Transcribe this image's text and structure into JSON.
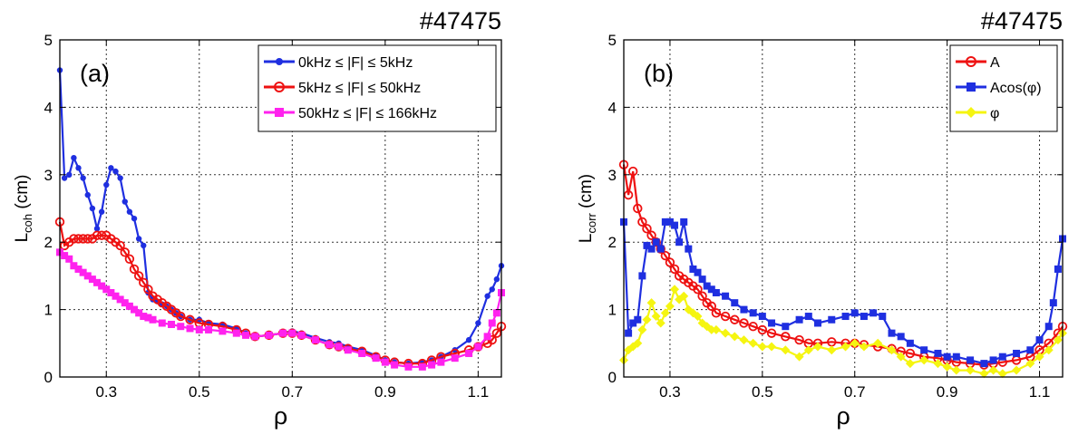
{
  "chart_data": [
    {
      "type": "line",
      "shot": "#47475",
      "panel_label": "(a)",
      "xlabel": "ρ",
      "ylabel_main": "L",
      "ylabel_sub": "coh",
      "ylabel_unit": " (cm)",
      "xlim": [
        0.2,
        1.15
      ],
      "ylim": [
        0,
        5
      ],
      "xticks": [
        "0.3",
        "0.5",
        "0.7",
        "0.9",
        "1.1"
      ],
      "yticks": [
        "0",
        "1",
        "2",
        "3",
        "4",
        "5"
      ],
      "grid": true,
      "legend_position": "top-right",
      "series": [
        {
          "name": "0kHz ≤ |F| ≤ 5kHz",
          "color": "#1f2fe0",
          "marker": "dot",
          "x": [
            0.2,
            0.21,
            0.22,
            0.23,
            0.24,
            0.25,
            0.26,
            0.27,
            0.28,
            0.29,
            0.3,
            0.31,
            0.32,
            0.33,
            0.34,
            0.35,
            0.36,
            0.37,
            0.38,
            0.39,
            0.4,
            0.41,
            0.42,
            0.43,
            0.44,
            0.45,
            0.46,
            0.48,
            0.5,
            0.52,
            0.55,
            0.58,
            0.6,
            0.62,
            0.65,
            0.68,
            0.7,
            0.72,
            0.75,
            0.78,
            0.8,
            0.82,
            0.85,
            0.88,
            0.9,
            0.92,
            0.95,
            0.98,
            1.0,
            1.02,
            1.05,
            1.08,
            1.1,
            1.12,
            1.13,
            1.14,
            1.15
          ],
          "y": [
            4.55,
            2.95,
            3.0,
            3.25,
            3.1,
            2.95,
            2.7,
            2.5,
            2.2,
            2.45,
            2.85,
            3.1,
            3.05,
            2.95,
            2.6,
            2.45,
            2.35,
            2.05,
            1.95,
            1.25,
            1.15,
            1.12,
            1.08,
            1.05,
            1.0,
            0.95,
            0.9,
            0.85,
            0.85,
            0.8,
            0.78,
            0.72,
            0.65,
            0.6,
            0.62,
            0.65,
            0.68,
            0.65,
            0.58,
            0.52,
            0.5,
            0.45,
            0.4,
            0.32,
            0.25,
            0.22,
            0.2,
            0.22,
            0.25,
            0.3,
            0.4,
            0.55,
            0.8,
            1.2,
            1.3,
            1.45,
            1.65
          ]
        },
        {
          "name": "5kHz ≤ |F| ≤ 50kHz",
          "color": "#ee1111",
          "marker": "circle",
          "x": [
            0.2,
            0.21,
            0.22,
            0.23,
            0.24,
            0.25,
            0.26,
            0.27,
            0.28,
            0.29,
            0.3,
            0.31,
            0.32,
            0.33,
            0.34,
            0.35,
            0.36,
            0.37,
            0.38,
            0.39,
            0.4,
            0.41,
            0.42,
            0.43,
            0.44,
            0.45,
            0.46,
            0.48,
            0.5,
            0.52,
            0.55,
            0.58,
            0.6,
            0.62,
            0.65,
            0.68,
            0.7,
            0.72,
            0.75,
            0.78,
            0.8,
            0.82,
            0.85,
            0.88,
            0.9,
            0.92,
            0.95,
            0.98,
            1.0,
            1.02,
            1.05,
            1.08,
            1.1,
            1.12,
            1.13,
            1.14,
            1.15
          ],
          "y": [
            2.3,
            1.95,
            2.0,
            2.05,
            2.05,
            2.05,
            2.05,
            2.05,
            2.1,
            2.1,
            2.1,
            2.05,
            2.0,
            1.95,
            1.85,
            1.75,
            1.6,
            1.5,
            1.4,
            1.3,
            1.2,
            1.15,
            1.1,
            1.05,
            1.0,
            0.95,
            0.9,
            0.85,
            0.8,
            0.78,
            0.75,
            0.7,
            0.65,
            0.6,
            0.62,
            0.65,
            0.65,
            0.62,
            0.55,
            0.48,
            0.45,
            0.42,
            0.38,
            0.3,
            0.25,
            0.22,
            0.2,
            0.2,
            0.25,
            0.3,
            0.35,
            0.4,
            0.45,
            0.5,
            0.55,
            0.65,
            0.75
          ]
        },
        {
          "name": "50kHz ≤ |F| ≤ 166kHz",
          "color": "#ff22ee",
          "marker": "square",
          "x": [
            0.2,
            0.21,
            0.22,
            0.23,
            0.24,
            0.25,
            0.26,
            0.27,
            0.28,
            0.29,
            0.3,
            0.31,
            0.32,
            0.33,
            0.34,
            0.35,
            0.36,
            0.37,
            0.38,
            0.39,
            0.4,
            0.42,
            0.44,
            0.46,
            0.48,
            0.5,
            0.52,
            0.55,
            0.58,
            0.6,
            0.62,
            0.65,
            0.68,
            0.7,
            0.72,
            0.75,
            0.78,
            0.8,
            0.82,
            0.85,
            0.88,
            0.9,
            0.92,
            0.95,
            0.98,
            1.0,
            1.02,
            1.05,
            1.08,
            1.1,
            1.12,
            1.13,
            1.14,
            1.15
          ],
          "y": [
            1.85,
            1.8,
            1.75,
            1.65,
            1.6,
            1.55,
            1.5,
            1.45,
            1.4,
            1.35,
            1.3,
            1.25,
            1.2,
            1.15,
            1.1,
            1.05,
            1.0,
            0.95,
            0.9,
            0.88,
            0.85,
            0.8,
            0.78,
            0.75,
            0.72,
            0.7,
            0.7,
            0.68,
            0.65,
            0.62,
            0.6,
            0.62,
            0.65,
            0.65,
            0.62,
            0.55,
            0.48,
            0.45,
            0.4,
            0.35,
            0.28,
            0.22,
            0.18,
            0.15,
            0.15,
            0.18,
            0.22,
            0.28,
            0.35,
            0.45,
            0.6,
            0.8,
            0.95,
            1.25
          ]
        }
      ]
    },
    {
      "type": "line",
      "shot": "#47475",
      "panel_label": "(b)",
      "xlabel": "ρ",
      "ylabel_main": "L",
      "ylabel_sub": "corr",
      "ylabel_unit": " (cm)",
      "xlim": [
        0.2,
        1.15
      ],
      "ylim": [
        0,
        5
      ],
      "xticks": [
        "0.3",
        "0.5",
        "0.7",
        "0.9",
        "1.1"
      ],
      "yticks": [
        "0",
        "1",
        "2",
        "3",
        "4",
        "5"
      ],
      "grid": true,
      "legend_position": "top-right",
      "series": [
        {
          "name": "A",
          "color": "#ee1111",
          "marker": "circle",
          "x": [
            0.2,
            0.21,
            0.22,
            0.23,
            0.24,
            0.25,
            0.26,
            0.27,
            0.28,
            0.29,
            0.3,
            0.31,
            0.32,
            0.33,
            0.34,
            0.35,
            0.36,
            0.37,
            0.38,
            0.39,
            0.4,
            0.42,
            0.44,
            0.46,
            0.48,
            0.5,
            0.52,
            0.55,
            0.58,
            0.6,
            0.62,
            0.65,
            0.68,
            0.7,
            0.72,
            0.75,
            0.78,
            0.8,
            0.82,
            0.85,
            0.88,
            0.9,
            0.92,
            0.95,
            0.98,
            1.0,
            1.02,
            1.05,
            1.08,
            1.1,
            1.12,
            1.14,
            1.15
          ],
          "y": [
            3.15,
            2.7,
            3.05,
            2.5,
            2.3,
            2.2,
            2.1,
            2.0,
            1.9,
            1.8,
            1.7,
            1.6,
            1.5,
            1.45,
            1.4,
            1.35,
            1.3,
            1.2,
            1.1,
            1.05,
            0.95,
            0.9,
            0.85,
            0.8,
            0.75,
            0.7,
            0.65,
            0.6,
            0.55,
            0.5,
            0.5,
            0.52,
            0.5,
            0.5,
            0.48,
            0.45,
            0.42,
            0.38,
            0.35,
            0.3,
            0.28,
            0.25,
            0.22,
            0.2,
            0.18,
            0.2,
            0.22,
            0.25,
            0.3,
            0.4,
            0.5,
            0.65,
            0.75
          ]
        },
        {
          "name": "Acos(φ)",
          "color": "#1f2fe0",
          "marker": "square",
          "x": [
            0.2,
            0.21,
            0.22,
            0.23,
            0.24,
            0.25,
            0.26,
            0.27,
            0.28,
            0.29,
            0.3,
            0.31,
            0.32,
            0.33,
            0.34,
            0.35,
            0.36,
            0.37,
            0.38,
            0.39,
            0.4,
            0.42,
            0.44,
            0.46,
            0.48,
            0.5,
            0.52,
            0.55,
            0.58,
            0.6,
            0.62,
            0.65,
            0.68,
            0.7,
            0.72,
            0.74,
            0.76,
            0.78,
            0.8,
            0.82,
            0.85,
            0.88,
            0.9,
            0.92,
            0.95,
            0.98,
            1.0,
            1.02,
            1.05,
            1.08,
            1.1,
            1.12,
            1.13,
            1.14,
            1.15
          ],
          "y": [
            2.3,
            0.65,
            0.8,
            0.85,
            1.5,
            1.95,
            1.9,
            2.0,
            1.9,
            2.3,
            2.3,
            2.25,
            2.0,
            2.3,
            1.9,
            1.6,
            1.55,
            1.45,
            1.35,
            1.3,
            1.25,
            1.2,
            1.1,
            1.0,
            0.95,
            0.9,
            0.8,
            0.75,
            0.85,
            0.9,
            0.8,
            0.85,
            0.9,
            0.95,
            0.9,
            0.95,
            0.9,
            0.65,
            0.6,
            0.5,
            0.4,
            0.35,
            0.3,
            0.3,
            0.25,
            0.2,
            0.25,
            0.3,
            0.35,
            0.4,
            0.55,
            0.75,
            1.1,
            1.6,
            2.05
          ]
        },
        {
          "name": "φ",
          "color": "#f5f511",
          "marker": "diamond",
          "x": [
            0.2,
            0.21,
            0.22,
            0.23,
            0.24,
            0.25,
            0.26,
            0.27,
            0.28,
            0.29,
            0.3,
            0.31,
            0.32,
            0.33,
            0.34,
            0.35,
            0.36,
            0.37,
            0.38,
            0.39,
            0.4,
            0.42,
            0.44,
            0.46,
            0.48,
            0.5,
            0.52,
            0.55,
            0.58,
            0.6,
            0.62,
            0.65,
            0.68,
            0.7,
            0.72,
            0.75,
            0.78,
            0.8,
            0.82,
            0.85,
            0.88,
            0.9,
            0.92,
            0.95,
            0.98,
            1.0,
            1.02,
            1.05,
            1.08,
            1.1,
            1.12,
            1.14,
            1.15
          ],
          "y": [
            0.25,
            0.4,
            0.45,
            0.5,
            0.7,
            0.85,
            1.1,
            0.9,
            0.8,
            0.95,
            1.05,
            1.3,
            1.15,
            1.2,
            1.0,
            0.95,
            0.9,
            0.8,
            0.75,
            0.7,
            0.7,
            0.65,
            0.6,
            0.55,
            0.5,
            0.45,
            0.45,
            0.4,
            0.3,
            0.4,
            0.45,
            0.4,
            0.45,
            0.5,
            0.45,
            0.5,
            0.4,
            0.3,
            0.2,
            0.25,
            0.2,
            0.15,
            0.1,
            0.1,
            0.05,
            0.1,
            0.05,
            0.1,
            0.2,
            0.3,
            0.4,
            0.55,
            0.65
          ]
        }
      ]
    }
  ]
}
